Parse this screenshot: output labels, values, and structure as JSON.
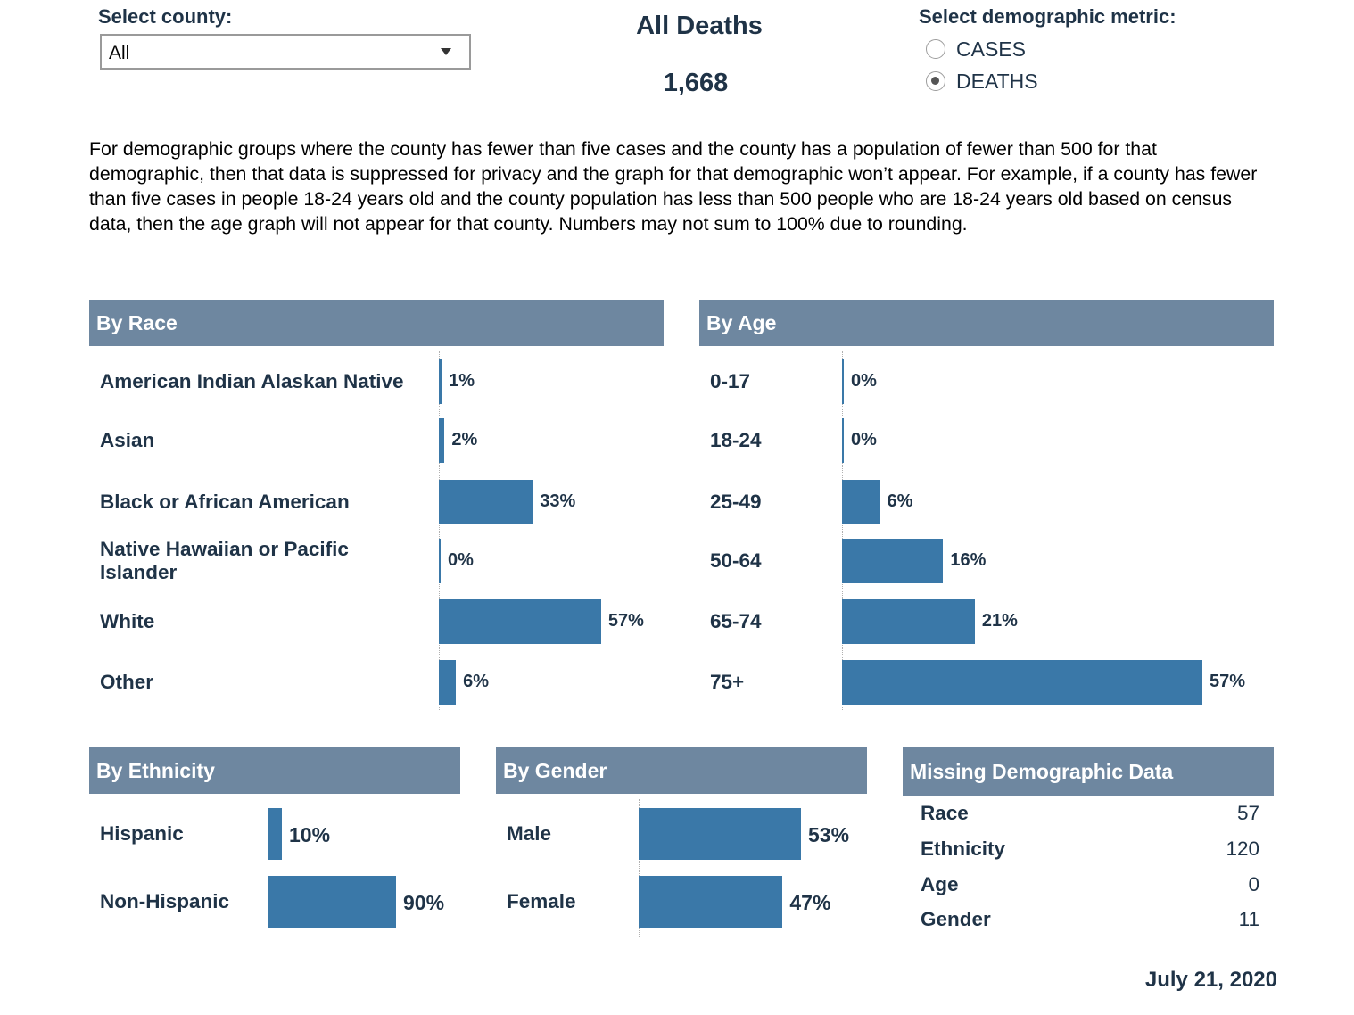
{
  "county_filter": {
    "label": "Select county:",
    "value": "All"
  },
  "kpi": {
    "title": "All Deaths",
    "value": "1,668"
  },
  "metric": {
    "label": "Select demographic metric:",
    "options": [
      {
        "label": "CASES",
        "selected": false
      },
      {
        "label": "DEATHS",
        "selected": true
      }
    ]
  },
  "note": "For demographic groups where the county has fewer than five cases and the county has a population of fewer than 500 for that demographic, then that data is suppressed for privacy and the graph for that demographic won’t appear. For example, if a county has fewer than five cases in people 18-24 years old and the county population has less than 500 people who are 18-24 years old based on census data, then the age graph will not appear for that county. Numbers may not sum to 100% due to rounding.",
  "chart_data": [
    {
      "type": "bar",
      "title": "By Race",
      "orientation": "horizontal",
      "categories": [
        "American Indian Alaskan Native",
        "Asian",
        "Black or African American",
        "Native Hawaiian or Pacific Islander",
        "White",
        "Other"
      ],
      "values": [
        1,
        2,
        33,
        0,
        57,
        6
      ],
      "value_labels": [
        "1%",
        "2%",
        "33%",
        "0%",
        "57%",
        "6%"
      ],
      "xlim": [
        0,
        100
      ]
    },
    {
      "type": "bar",
      "title": "By Age",
      "orientation": "horizontal",
      "categories": [
        "0-17",
        "18-24",
        "25-49",
        "50-64",
        "65-74",
        "75+"
      ],
      "values": [
        0,
        0,
        6,
        16,
        21,
        57
      ],
      "value_labels": [
        "0%",
        "0%",
        "6%",
        "16%",
        "21%",
        "57%"
      ],
      "xlim": [
        0,
        57
      ]
    },
    {
      "type": "bar",
      "title": "By Ethnicity",
      "orientation": "horizontal",
      "categories": [
        "Hispanic",
        "Non-Hispanic"
      ],
      "values": [
        10,
        90
      ],
      "value_labels": [
        "10%",
        "90%"
      ],
      "xlim": [
        0,
        100
      ]
    },
    {
      "type": "bar",
      "title": "By Gender",
      "orientation": "horizontal",
      "categories": [
        "Male",
        "Female"
      ],
      "values": [
        53,
        47
      ],
      "value_labels": [
        "53%",
        "47%"
      ],
      "xlim": [
        0,
        53
      ]
    },
    {
      "type": "table",
      "title": "Missing Demographic Data",
      "rows": [
        {
          "label": "Race",
          "value": "57"
        },
        {
          "label": "Ethnicity",
          "value": "120"
        },
        {
          "label": "Age",
          "value": "0"
        },
        {
          "label": "Gender",
          "value": "11"
        }
      ]
    }
  ],
  "date": "July 21, 2020",
  "colors": {
    "header": "#6e87a0",
    "bar": "#3a78a8",
    "text": "#1f3347"
  }
}
